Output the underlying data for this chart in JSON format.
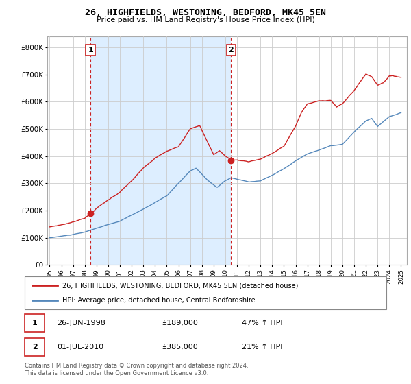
{
  "title": "26, HIGHFIELDS, WESTONING, BEDFORD, MK45 5EN",
  "subtitle": "Price paid vs. HM Land Registry's House Price Index (HPI)",
  "legend_line1": "26, HIGHFIELDS, WESTONING, BEDFORD, MK45 5EN (detached house)",
  "legend_line2": "HPI: Average price, detached house, Central Bedfordshire",
  "annotation1_date": "26-JUN-1998",
  "annotation1_price": "£189,000",
  "annotation1_hpi": "47% ↑ HPI",
  "annotation2_date": "01-JUL-2010",
  "annotation2_price": "£385,000",
  "annotation2_hpi": "21% ↑ HPI",
  "footer": "Contains HM Land Registry data © Crown copyright and database right 2024.\nThis data is licensed under the Open Government Licence v3.0.",
  "sale1_year": 1998.49,
  "sale1_value": 189000,
  "sale2_year": 2010.5,
  "sale2_value": 385000,
  "price_line_color": "#cc2222",
  "hpi_line_color": "#5588bb",
  "shade_color": "#ddeeff",
  "background_color": "#ffffff",
  "grid_color": "#cccccc",
  "annotation_box_color": "#cc2222",
  "ylim_min": 0,
  "ylim_max": 840000,
  "xlim_min": 1994.8,
  "xlim_max": 2025.5,
  "hpi_years": [
    1995,
    1995.08,
    1995.17,
    1995.25,
    1995.33,
    1995.42,
    1995.5,
    1995.58,
    1995.67,
    1995.75,
    1995.83,
    1995.92,
    1996,
    1996.08,
    1996.17,
    1996.25,
    1996.33,
    1996.42,
    1996.5,
    1996.58,
    1996.67,
    1996.75,
    1996.83,
    1996.92,
    1997,
    1997.08,
    1997.17,
    1997.25,
    1997.33,
    1997.42,
    1997.5,
    1997.58,
    1997.67,
    1997.75,
    1997.83,
    1997.92,
    1998,
    1998.08,
    1998.17,
    1998.25,
    1998.33,
    1998.42,
    1998.5,
    1998.58,
    1998.67,
    1998.75,
    1998.83,
    1998.92,
    1999,
    1999.08,
    1999.17,
    1999.25,
    1999.33,
    1999.42,
    1999.5,
    1999.58,
    1999.67,
    1999.75,
    1999.83,
    1999.92,
    2000,
    2000.08,
    2000.17,
    2000.25,
    2000.33,
    2000.42,
    2000.5,
    2000.58,
    2000.67,
    2000.75,
    2000.83,
    2000.92,
    2001,
    2001.08,
    2001.17,
    2001.25,
    2001.33,
    2001.42,
    2001.5,
    2001.58,
    2001.67,
    2001.75,
    2001.83,
    2001.92,
    2002,
    2002.08,
    2002.17,
    2002.25,
    2002.33,
    2002.42,
    2002.5,
    2002.58,
    2002.67,
    2002.75,
    2002.83,
    2002.92,
    2003,
    2003.08,
    2003.17,
    2003.25,
    2003.33,
    2003.42,
    2003.5,
    2003.58,
    2003.67,
    2003.75,
    2003.83,
    2003.92,
    2004,
    2004.08,
    2004.17,
    2004.25,
    2004.33,
    2004.42,
    2004.5,
    2004.58,
    2004.67,
    2004.75,
    2004.83,
    2004.92,
    2005,
    2005.08,
    2005.17,
    2005.25,
    2005.33,
    2005.42,
    2005.5,
    2005.58,
    2005.67,
    2005.75,
    2005.83,
    2005.92,
    2006,
    2006.08,
    2006.17,
    2006.25,
    2006.33,
    2006.42,
    2006.5,
    2006.58,
    2006.67,
    2006.75,
    2006.83,
    2006.92,
    2007,
    2007.08,
    2007.17,
    2007.25,
    2007.33,
    2007.42,
    2007.5,
    2007.58,
    2007.67,
    2007.75,
    2007.83,
    2007.92,
    2008,
    2008.08,
    2008.17,
    2008.25,
    2008.33,
    2008.42,
    2008.5,
    2008.58,
    2008.67,
    2008.75,
    2008.83,
    2008.92,
    2009,
    2009.08,
    2009.17,
    2009.25,
    2009.33,
    2009.42,
    2009.5,
    2009.58,
    2009.67,
    2009.75,
    2009.83,
    2009.92,
    2010,
    2010.08,
    2010.17,
    2010.25,
    2010.33,
    2010.42,
    2010.5,
    2010.58,
    2010.67,
    2010.75,
    2010.83,
    2010.92,
    2011,
    2011.08,
    2011.17,
    2011.25,
    2011.33,
    2011.42,
    2011.5,
    2011.58,
    2011.67,
    2011.75,
    2011.83,
    2011.92,
    2012,
    2012.08,
    2012.17,
    2012.25,
    2012.33,
    2012.42,
    2012.5,
    2012.58,
    2012.67,
    2012.75,
    2012.83,
    2012.92,
    2013,
    2013.08,
    2013.17,
    2013.25,
    2013.33,
    2013.42,
    2013.5,
    2013.58,
    2013.67,
    2013.75,
    2013.83,
    2013.92,
    2014,
    2014.08,
    2014.17,
    2014.25,
    2014.33,
    2014.42,
    2014.5,
    2014.58,
    2014.67,
    2014.75,
    2014.83,
    2014.92,
    2015,
    2015.08,
    2015.17,
    2015.25,
    2015.33,
    2015.42,
    2015.5,
    2015.58,
    2015.67,
    2015.75,
    2015.83,
    2015.92,
    2016,
    2016.08,
    2016.17,
    2016.25,
    2016.33,
    2016.42,
    2016.5,
    2016.58,
    2016.67,
    2016.75,
    2016.83,
    2016.92,
    2017,
    2017.08,
    2017.17,
    2017.25,
    2017.33,
    2017.42,
    2017.5,
    2017.58,
    2017.67,
    2017.75,
    2017.83,
    2017.92,
    2018,
    2018.08,
    2018.17,
    2018.25,
    2018.33,
    2018.42,
    2018.5,
    2018.58,
    2018.67,
    2018.75,
    2018.83,
    2018.92,
    2019,
    2019.08,
    2019.17,
    2019.25,
    2019.33,
    2019.42,
    2019.5,
    2019.58,
    2019.67,
    2019.75,
    2019.83,
    2019.92,
    2020,
    2020.08,
    2020.17,
    2020.25,
    2020.33,
    2020.42,
    2020.5,
    2020.58,
    2020.67,
    2020.75,
    2020.83,
    2020.92,
    2021,
    2021.08,
    2021.17,
    2021.25,
    2021.33,
    2021.42,
    2021.5,
    2021.58,
    2021.67,
    2021.75,
    2021.83,
    2021.92,
    2022,
    2022.08,
    2022.17,
    2022.25,
    2022.33,
    2022.42,
    2022.5,
    2022.58,
    2022.67,
    2022.75,
    2022.83,
    2022.92,
    2023,
    2023.08,
    2023.17,
    2023.25,
    2023.33,
    2023.42,
    2023.5,
    2023.58,
    2023.67,
    2023.75,
    2023.83,
    2023.92,
    2024,
    2024.08,
    2024.17,
    2024.25,
    2024.33,
    2024.42,
    2024.5,
    2024.58,
    2024.67,
    2024.75,
    2024.83,
    2024.92,
    2025
  ]
}
